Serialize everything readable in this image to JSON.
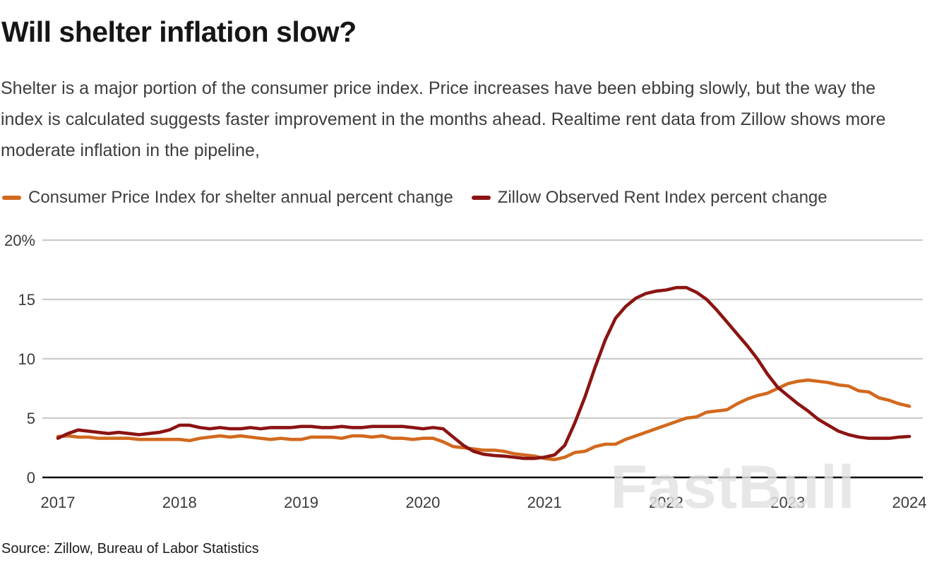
{
  "header": {
    "title": "Will shelter inflation slow?",
    "subtitle": "Shelter is a major portion of the consumer price index. Price increases have been ebbing slowly, but the way the index is calculated suggests faster improvement in the months ahead. Realtime rent data from Zillow shows more moderate inflation in the pipeline,"
  },
  "legend": {
    "items": [
      {
        "label": "Consumer Price Index for shelter annual percent change",
        "color": "#d2691e"
      },
      {
        "label": "Zillow Observed Rent Index percent change",
        "color": "#8b1412"
      }
    ]
  },
  "watermark": "FastBull",
  "source": "Source: Zillow, Bureau of Labor Statistics",
  "chart_data": {
    "type": "line",
    "title": "Will shelter inflation slow?",
    "xlabel": "",
    "ylabel": "",
    "grid": true,
    "legend_position": "top",
    "x_axis": {
      "start": "2017-01",
      "end": "2024-01",
      "freq": "monthly",
      "tick_labels": [
        "2017",
        "2018",
        "2019",
        "2020",
        "2021",
        "2022",
        "2023",
        "2024"
      ]
    },
    "y_axis": {
      "range": [
        0,
        20
      ],
      "tick_values": [
        0,
        5,
        10,
        15,
        20
      ],
      "tick_labels": [
        "0",
        "5",
        "10",
        "15",
        "20%"
      ]
    },
    "series": [
      {
        "name": "Consumer Price Index for shelter annual percent change",
        "color": "#d2691e",
        "values": [
          3.45,
          3.5,
          3.4,
          3.4,
          3.3,
          3.3,
          3.3,
          3.3,
          3.2,
          3.2,
          3.2,
          3.2,
          3.2,
          3.1,
          3.3,
          3.4,
          3.5,
          3.4,
          3.5,
          3.4,
          3.3,
          3.2,
          3.3,
          3.2,
          3.2,
          3.4,
          3.4,
          3.4,
          3.3,
          3.5,
          3.5,
          3.4,
          3.5,
          3.3,
          3.3,
          3.2,
          3.3,
          3.3,
          3.0,
          2.6,
          2.5,
          2.4,
          2.3,
          2.3,
          2.2,
          2.0,
          1.9,
          1.8,
          1.6,
          1.5,
          1.7,
          2.1,
          2.2,
          2.6,
          2.8,
          2.8,
          3.2,
          3.5,
          3.8,
          4.1,
          4.4,
          4.7,
          5.0,
          5.1,
          5.5,
          5.6,
          5.7,
          6.2,
          6.6,
          6.9,
          7.1,
          7.5,
          7.9,
          8.1,
          8.2,
          8.1,
          8.0,
          7.8,
          7.7,
          7.3,
          7.2,
          6.7,
          6.5,
          6.2,
          6.0
        ]
      },
      {
        "name": "Zillow Observed Rent Index percent change",
        "color": "#8b1412",
        "values": [
          3.3,
          3.7,
          4.0,
          3.9,
          3.8,
          3.7,
          3.8,
          3.7,
          3.6,
          3.7,
          3.8,
          4.0,
          4.4,
          4.4,
          4.2,
          4.1,
          4.2,
          4.1,
          4.1,
          4.2,
          4.1,
          4.2,
          4.2,
          4.2,
          4.3,
          4.3,
          4.2,
          4.2,
          4.3,
          4.2,
          4.2,
          4.3,
          4.3,
          4.3,
          4.3,
          4.2,
          4.1,
          4.2,
          4.1,
          3.4,
          2.7,
          2.2,
          1.95,
          1.85,
          1.8,
          1.7,
          1.6,
          1.6,
          1.7,
          1.9,
          2.7,
          4.6,
          6.8,
          9.3,
          11.6,
          13.4,
          14.4,
          15.1,
          15.5,
          15.7,
          15.8,
          16.0,
          16.0,
          15.6,
          15.0,
          14.1,
          13.1,
          12.1,
          11.1,
          10.0,
          8.7,
          7.6,
          6.9,
          6.2,
          5.6,
          4.9,
          4.4,
          3.9,
          3.6,
          3.4,
          3.3,
          3.3,
          3.3,
          3.4,
          3.45
        ]
      }
    ]
  }
}
